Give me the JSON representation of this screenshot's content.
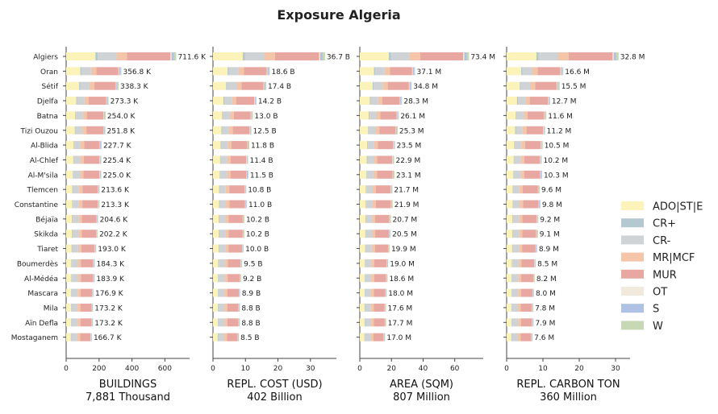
{
  "chart_data": {
    "type": "bar",
    "orientation": "horizontal",
    "stacked": true,
    "title": "Exposure Algeria",
    "categories": [
      "Algiers",
      "Oran",
      "Sétif",
      "Djelfa",
      "Batna",
      "Tizi Ouzou",
      "Al-Blida",
      "Al-Chlef",
      "Al-M'sila",
      "Tlemcen",
      "Constantine",
      "Béjaïa",
      "Skikda",
      "Tiaret",
      "Boumerdès",
      "Al-Médéa",
      "Mascara",
      "Mila",
      "Aïn Defla",
      "Mostaganem"
    ],
    "legend": {
      "placement": "right",
      "entries": [
        {
          "name": "ADO|ST|E",
          "color": "#fbf3b9"
        },
        {
          "name": "CR+",
          "color": "#b3c8d1"
        },
        {
          "name": "CR-",
          "color": "#d0d3d6"
        },
        {
          "name": "MR|MCF",
          "color": "#f4c5a8"
        },
        {
          "name": "MUR",
          "color": "#e8a8a1"
        },
        {
          "name": "OT",
          "color": "#f1e9dc"
        },
        {
          "name": "S",
          "color": "#b0c2e3"
        },
        {
          "name": "W",
          "color": "#c6d8b4"
        }
      ]
    },
    "panels": [
      {
        "xlabel": "BUILDINGS",
        "subtitle": "7,881 Thousand",
        "xlim": [
          0,
          750
        ],
        "xticks": [
          0,
          200,
          400,
          600
        ],
        "totals": [
          711.6,
          356.8,
          338.3,
          273.3,
          254.0,
          251.8,
          227.7,
          225.4,
          225.0,
          213.6,
          213.3,
          204.6,
          202.2,
          193.0,
          184.3,
          183.9,
          176.9,
          173.2,
          173.2,
          166.7
        ],
        "total_labels": [
          "711.6 K",
          "356.8 K",
          "338.3 K",
          "273.3 K",
          "254.0 K",
          "251.8 K",
          "227.7 K",
          "225.4 K",
          "225.0 K",
          "213.6 K",
          "213.3 K",
          "204.6 K",
          "202.2 K",
          "193.0 K",
          "184.3 K",
          "183.9 K",
          "176.9 K",
          "173.2 K",
          "173.2 K",
          "166.7 K"
        ]
      },
      {
        "xlabel": "REPL. COST (USD)",
        "subtitle": "402 Billion",
        "xlim": [
          0,
          38
        ],
        "xticks": [
          0,
          10,
          20,
          30
        ],
        "totals": [
          36.7,
          18.6,
          17.4,
          14.2,
          13.0,
          12.5,
          11.8,
          11.4,
          11.5,
          10.8,
          11.0,
          10.2,
          10.2,
          10.0,
          9.5,
          9.2,
          8.9,
          8.8,
          8.8,
          8.5
        ],
        "total_labels": [
          "36.7 B",
          "18.6 B",
          "17.4 B",
          "14.2 B",
          "13.0 B",
          "12.5 B",
          "11.8 B",
          "11.4 B",
          "11.5 B",
          "10.8 B",
          "11.0 B",
          "10.2 B",
          "10.2 B",
          "10.0 B",
          "9.5 B",
          "9.2 B",
          "8.9 B",
          "8.8 B",
          "8.8 B",
          "8.5 B"
        ]
      },
      {
        "xlabel": "AREA (SQM)",
        "subtitle": "807 Million",
        "xlim": [
          0,
          78
        ],
        "xticks": [
          0,
          20,
          40,
          60
        ],
        "totals": [
          73.4,
          37.1,
          34.8,
          28.3,
          26.1,
          25.3,
          23.5,
          22.9,
          23.1,
          21.7,
          21.9,
          20.7,
          20.5,
          19.9,
          19.0,
          18.6,
          18.0,
          17.6,
          17.7,
          17.0
        ],
        "total_labels": [
          "73.4 M",
          "37.1 M",
          "34.8 M",
          "28.3 M",
          "26.1 M",
          "25.3 M",
          "23.5 M",
          "22.9 M",
          "23.1 M",
          "21.7 M",
          "21.9 M",
          "20.7 M",
          "20.5 M",
          "19.9 M",
          "19.0 M",
          "18.6 M",
          "18.0 M",
          "17.6 M",
          "17.7 M",
          "17.0 M"
        ]
      },
      {
        "xlabel": "REPL. CARBON TON",
        "subtitle": "360 Million",
        "xlim": [
          0,
          34
        ],
        "xticks": [
          0,
          10,
          20,
          30
        ],
        "totals": [
          32.8,
          16.6,
          15.5,
          12.7,
          11.6,
          11.2,
          10.5,
          10.2,
          10.3,
          9.6,
          9.8,
          9.2,
          9.1,
          8.9,
          8.5,
          8.2,
          8.0,
          7.8,
          7.9,
          7.6
        ],
        "total_labels": [
          "32.8 M",
          "16.6 M",
          "15.5 M",
          "12.7 M",
          "11.6 M",
          "11.2 M",
          "10.5 M",
          "10.2 M",
          "10.3 M",
          "9.6 M",
          "9.8 M",
          "9.2 M",
          "9.1 M",
          "8.9 M",
          "8.5 M",
          "8.2 M",
          "8.0 M",
          "7.8 M",
          "7.9 M",
          "7.6 M"
        ]
      }
    ],
    "composition": [
      {
        "name": "ADO|ST|E",
        "fractions": [
          0.25,
          0.17,
          0.17
        ]
      },
      {
        "name": "CR+",
        "fractions": [
          0.02,
          0.02,
          0.02
        ]
      },
      {
        "name": "CR-",
        "fractions": [
          0.16,
          0.17,
          0.22
        ]
      },
      {
        "name": "MR|MCF",
        "fractions": [
          0.09,
          0.1,
          0.1
        ]
      },
      {
        "name": "MUR",
        "fractions": [
          0.37,
          0.44,
          0.38
        ]
      },
      {
        "name": "OT",
        "fractions": [
          0.01,
          0.01,
          0.01
        ]
      },
      {
        "name": "S",
        "fractions": [
          0.02,
          0.02,
          0.02
        ]
      },
      {
        "name": "W",
        "fractions": [
          0.02,
          0.02,
          0.02
        ]
      }
    ]
  }
}
